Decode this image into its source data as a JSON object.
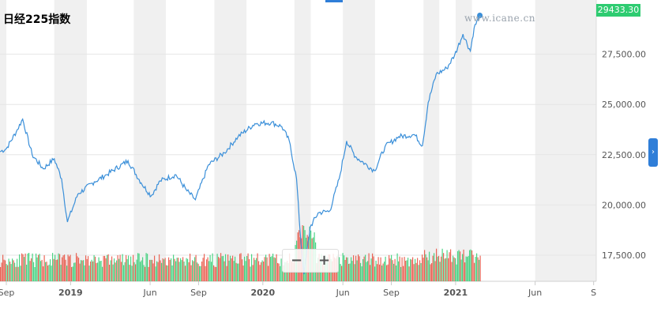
{
  "chart_data": {
    "type": "line",
    "title": "日经225指数",
    "watermark": "www.icane.cn",
    "last_value_label": "29433.30",
    "ylim": [
      16200,
      30200
    ],
    "yticks": [
      "17,500.00",
      "20,000.00",
      "22,500.00",
      "25,000.00",
      "27,500.00"
    ],
    "ytick_values": [
      17500,
      20000,
      22500,
      25000,
      27500
    ],
    "xlim": [
      "2018-08-20",
      "2021-09-25"
    ],
    "xticks": [
      {
        "label": "Sep",
        "date": "2018-09-01"
      },
      {
        "label": "2019",
        "date": "2019-01-01"
      },
      {
        "label": "Jun",
        "date": "2019-06-01"
      },
      {
        "label": "Sep",
        "date": "2019-09-01"
      },
      {
        "label": "2020",
        "date": "2020-01-01"
      },
      {
        "label": "Jun",
        "date": "2020-06-01"
      },
      {
        "label": "Sep",
        "date": "2020-09-01"
      },
      {
        "label": "2021",
        "date": "2021-01-01"
      },
      {
        "label": "Jun",
        "date": "2021-06-01"
      },
      {
        "label": "S",
        "date": "2021-09-20"
      }
    ],
    "shaded_bands": [
      [
        "2018-08-20",
        "2018-09-01"
      ],
      [
        "2018-12-01",
        "2019-02-01"
      ],
      [
        "2019-05-01",
        "2019-07-01"
      ],
      [
        "2019-10-01",
        "2019-12-01"
      ],
      [
        "2020-03-01",
        "2020-04-01"
      ],
      [
        "2020-06-01",
        "2020-08-01"
      ],
      [
        "2020-11-01",
        "2020-12-01"
      ],
      [
        "2021-01-01",
        "2021-02-01"
      ],
      [
        "2021-06-01",
        "2021-09-25"
      ]
    ],
    "series": [
      {
        "color": "#3a8fd9",
        "points": [
          [
            "2018-08-20",
            22650
          ],
          [
            "2018-09-01",
            22800
          ],
          [
            "2018-09-20",
            23650
          ],
          [
            "2018-10-02",
            24270
          ],
          [
            "2018-10-20",
            22500
          ],
          [
            "2018-11-10",
            21800
          ],
          [
            "2018-12-01",
            22300
          ],
          [
            "2018-12-15",
            21300
          ],
          [
            "2018-12-26",
            19150
          ],
          [
            "2019-01-15",
            20550
          ],
          [
            "2019-02-15",
            21150
          ],
          [
            "2019-03-10",
            21500
          ],
          [
            "2019-04-20",
            22200
          ],
          [
            "2019-05-15",
            21100
          ],
          [
            "2019-06-03",
            20450
          ],
          [
            "2019-06-20",
            21200
          ],
          [
            "2019-07-20",
            21500
          ],
          [
            "2019-08-10",
            20700
          ],
          [
            "2019-08-26",
            20260
          ],
          [
            "2019-09-20",
            22000
          ],
          [
            "2019-10-20",
            22600
          ],
          [
            "2019-11-15",
            23400
          ],
          [
            "2019-12-17",
            24050
          ],
          [
            "2020-01-17",
            24100
          ],
          [
            "2020-02-06",
            23900
          ],
          [
            "2020-02-20",
            23200
          ],
          [
            "2020-03-05",
            21300
          ],
          [
            "2020-03-12",
            18600
          ],
          [
            "2020-03-19",
            16550
          ],
          [
            "2020-03-31",
            18900
          ],
          [
            "2020-04-15",
            19600
          ],
          [
            "2020-05-07",
            19700
          ],
          [
            "2020-05-25",
            21300
          ],
          [
            "2020-06-08",
            23180
          ],
          [
            "2020-06-25",
            22400
          ],
          [
            "2020-07-31",
            21700
          ],
          [
            "2020-08-20",
            22900
          ],
          [
            "2020-09-15",
            23400
          ],
          [
            "2020-10-15",
            23500
          ],
          [
            "2020-10-30",
            22950
          ],
          [
            "2020-11-10",
            25100
          ],
          [
            "2020-11-25",
            26500
          ],
          [
            "2020-12-15",
            26800
          ],
          [
            "2020-12-30",
            27450
          ],
          [
            "2021-01-15",
            28500
          ],
          [
            "2021-01-29",
            27660
          ],
          [
            "2021-02-05",
            28800
          ],
          [
            "2021-02-16",
            29433
          ]
        ]
      }
    ],
    "volume_ylim": [
      0,
      1
    ],
    "volume_colors": {
      "up": "#2ecc71",
      "down": "#e74c3c"
    },
    "grid": true,
    "legend": "none"
  },
  "controls": {
    "zoom_out": "−",
    "zoom_in": "+",
    "scroll_right": "›"
  }
}
